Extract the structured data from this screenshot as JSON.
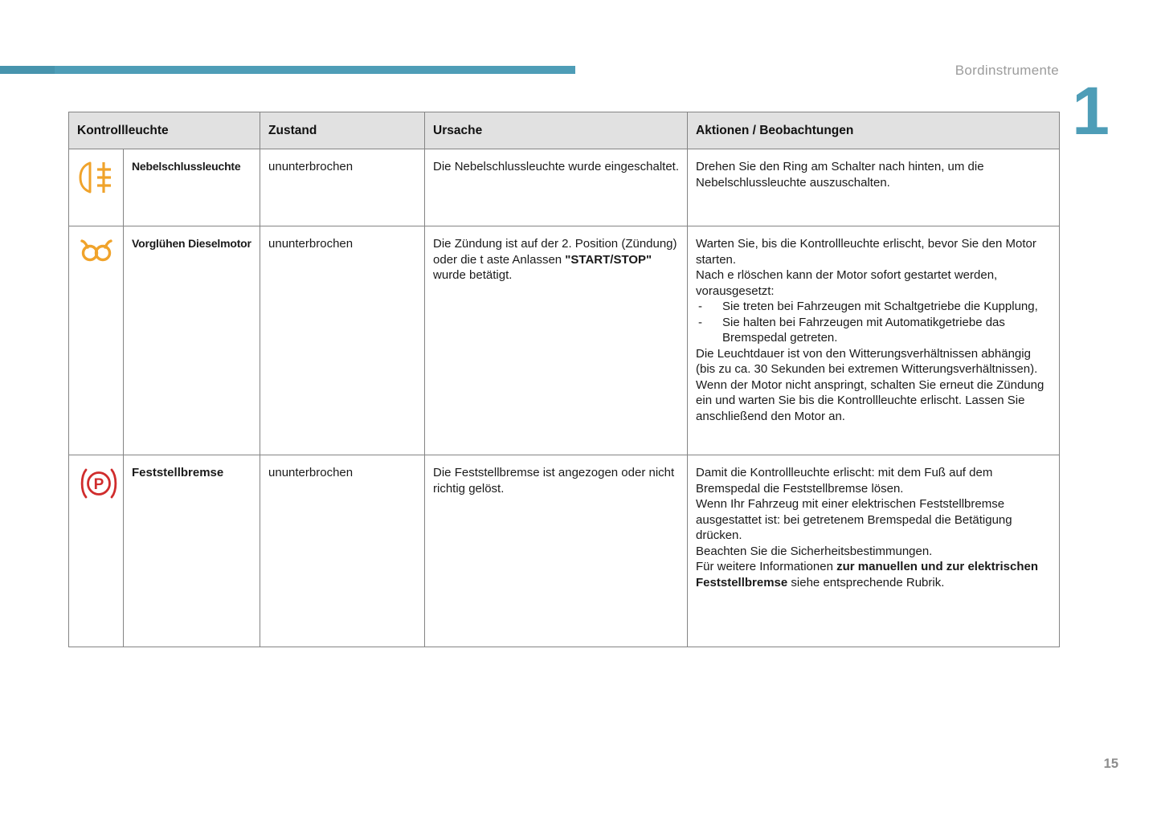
{
  "page": {
    "header_title": "Bordinstrumente",
    "chapter_number": "1",
    "page_number": "15"
  },
  "colors": {
    "accent_teal": "#4e9db7",
    "accent_teal_dark": "#4794ad",
    "icon_orange": "#f0a32b",
    "icon_red": "#d02c2c",
    "header_row_bg": "#e1e1e1",
    "name_col_bg": "#f4f4f6"
  },
  "table": {
    "headers": {
      "kontrollleuchte": "Kontrollleuchte",
      "zustand": "Zustand",
      "ursache": "Ursache",
      "aktionen": "Aktionen / Beobachtungen"
    },
    "list_marker": "-",
    "rows": [
      {
        "icon": "rear-fog-light-icon",
        "name": "Nebelschlussleuchte",
        "zustand": "ununterbrochen",
        "ursache": [
          {
            "t": "Die Nebelschlussleuchte wurde eingeschaltet."
          }
        ],
        "aktionen": [
          {
            "type": "p",
            "segs": [
              {
                "t": "Drehen Sie den Ring am Schalter nach hinten, um die Nebelschlussleuchte auszuschalten."
              }
            ]
          }
        ]
      },
      {
        "icon": "glow-plug-icon",
        "name": "Vorglühen Dieselmotor",
        "zustand": "ununterbrochen",
        "ursache": [
          {
            "t": "Die Zündung ist auf der 2. Position (Zündung) oder die t aste Anlassen "
          },
          {
            "t": "\"START/STOP\"",
            "b": true
          },
          {
            "t": " wurde betätigt."
          }
        ],
        "aktionen": [
          {
            "type": "p",
            "segs": [
              {
                "t": "Warten Sie, bis die Kontrollleuchte erlischt, bevor Sie den Motor starten."
              }
            ]
          },
          {
            "type": "p",
            "segs": [
              {
                "t": "Nach e rlöschen kann der Motor sofort gestartet werden, vorausgesetzt:"
              }
            ]
          },
          {
            "type": "li",
            "segs": [
              {
                "t": "Sie treten bei Fahrzeugen mit Schaltgetriebe die Kupplung,"
              }
            ]
          },
          {
            "type": "li",
            "segs": [
              {
                "t": "Sie halten bei Fahrzeugen mit Automatikgetriebe das Bremspedal getreten."
              }
            ]
          },
          {
            "type": "p",
            "segs": [
              {
                "t": "Die Leuchtdauer ist von den Witterungsverhältnissen abhängig (bis zu ca. 30 Sekunden bei extremen Witterungsverhältnissen)."
              }
            ]
          },
          {
            "type": "p",
            "segs": [
              {
                "t": "Wenn der Motor nicht anspringt, schalten Sie erneut die Zündung ein und warten Sie bis die Kontrollleuchte erlischt. Lassen Sie anschließend den Motor an."
              }
            ]
          }
        ]
      },
      {
        "icon": "parking-brake-icon",
        "name": "Feststellbremse",
        "zustand": "ununterbrochen",
        "ursache": [
          {
            "t": "Die Feststellbremse ist angezogen oder nicht richtig gelöst."
          }
        ],
        "aktionen": [
          {
            "type": "p",
            "segs": [
              {
                "t": "Damit die Kontrollleuchte erlischt: mit dem Fuß auf dem Bremspedal die Feststellbremse lösen."
              }
            ]
          },
          {
            "type": "p",
            "segs": [
              {
                "t": "Wenn Ihr Fahrzeug mit einer elektrischen Feststellbremse ausgestattet ist: bei getretenem Bremspedal die Betätigung drücken."
              }
            ]
          },
          {
            "type": "p",
            "segs": [
              {
                "t": "Beachten Sie die Sicherheitsbestimmungen."
              }
            ]
          },
          {
            "type": "p",
            "segs": [
              {
                "t": "Für weitere Informationen "
              },
              {
                "t": "zur manuellen und zur elektrischen Feststellbremse",
                "b": true
              },
              {
                "t": " siehe entsprechende Rubrik."
              }
            ]
          }
        ]
      }
    ]
  }
}
